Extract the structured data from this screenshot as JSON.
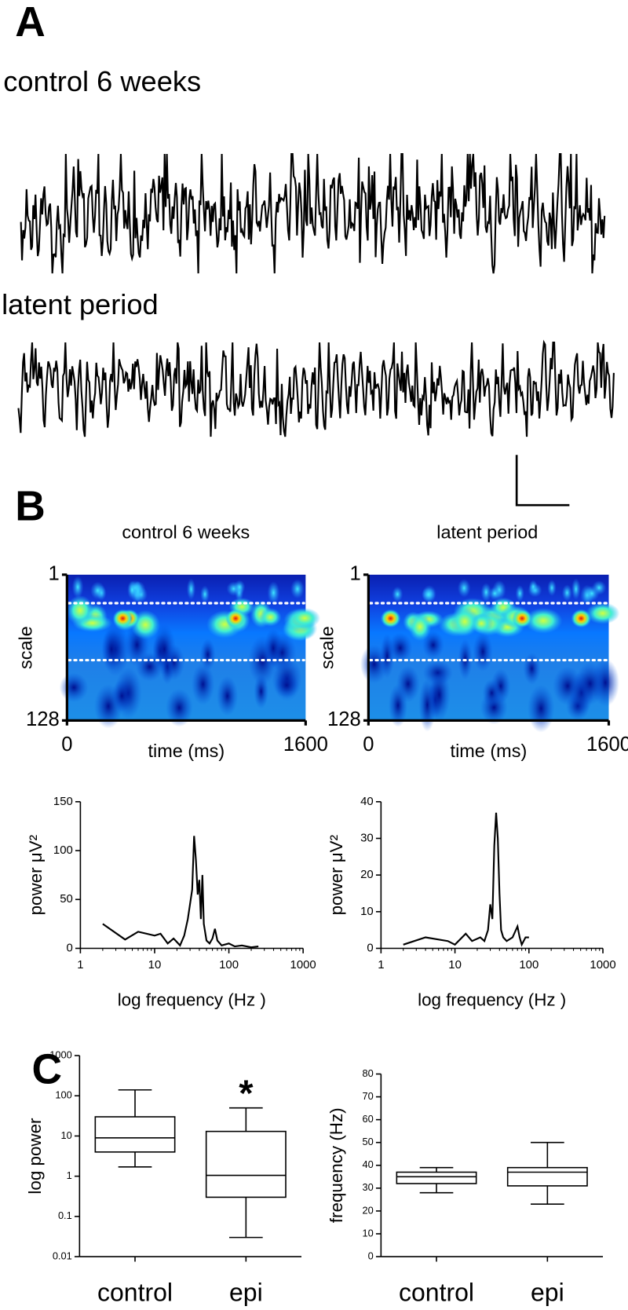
{
  "panel_labels": [
    "A",
    "B",
    "C"
  ],
  "traces": {
    "titles": [
      "control 6 weeks",
      "latent period"
    ]
  },
  "chart_data": [
    {
      "type": "heatmap",
      "title": "control 6 weeks",
      "xlabel": "time (ms)",
      "ylabel": "scale",
      "xlim": [
        0,
        1600
      ],
      "xticks": [
        0,
        1600
      ],
      "ylim": [
        1,
        128
      ],
      "yticks": [
        1,
        128
      ],
      "y_inverted": true
    },
    {
      "type": "heatmap",
      "title": "latent period",
      "xlabel": "time (ms)",
      "ylabel": "scale",
      "xlim": [
        0,
        1600
      ],
      "xticks": [
        0,
        1600
      ],
      "ylim": [
        1,
        128
      ],
      "yticks": [
        1,
        128
      ],
      "y_inverted": true
    },
    {
      "type": "line",
      "xlabel": "log frequency (Hz )",
      "ylabel": "power μV²",
      "xscale": "log",
      "color": "#000000",
      "x": [
        2,
        4,
        6,
        10,
        12,
        15,
        18,
        22,
        25,
        28,
        32,
        34,
        36,
        38,
        40,
        42,
        44,
        46,
        50,
        55,
        60,
        65,
        70,
        80,
        100,
        120,
        150,
        200,
        250
      ],
      "values": [
        25,
        9,
        17,
        13,
        15,
        5,
        10,
        3,
        13,
        30,
        60,
        115,
        90,
        55,
        70,
        30,
        75,
        25,
        8,
        5,
        10,
        20,
        8,
        3,
        5,
        2,
        3,
        1,
        2
      ],
      "xlim": [
        1,
        1000
      ],
      "xticks": [
        1,
        10,
        100,
        1000
      ],
      "ylim": [
        0,
        150
      ],
      "yticks": [
        0,
        50,
        100,
        150
      ]
    },
    {
      "type": "line",
      "xlabel": "log frequency (Hz )",
      "ylabel": "power μV²",
      "xscale": "log",
      "color": "#000000",
      "x": [
        2,
        4,
        8,
        10,
        14,
        17,
        22,
        25,
        28,
        30,
        32,
        34,
        36,
        38,
        40,
        42,
        45,
        50,
        60,
        70,
        75,
        80,
        90,
        100
      ],
      "values": [
        1,
        3,
        2,
        1,
        4,
        2,
        3,
        2,
        5,
        12,
        8,
        28,
        37,
        30,
        15,
        5,
        3,
        2,
        3,
        6,
        3,
        1,
        3,
        3
      ],
      "xlim": [
        1,
        1000
      ],
      "xticks": [
        1,
        10,
        100,
        1000
      ],
      "ylim": [
        0,
        40
      ],
      "yticks": [
        0,
        10,
        20,
        30,
        40
      ]
    },
    {
      "type": "box",
      "ylabel": "log power",
      "yscale": "log",
      "categories": [
        "control",
        "epi"
      ],
      "boxes": [
        {
          "min": 1.7,
          "q1": 4,
          "median": 9,
          "q3": 30,
          "max": 140
        },
        {
          "min": 0.03,
          "q1": 0.3,
          "median": 1.05,
          "q3": 13,
          "max": 50,
          "label": "*"
        }
      ],
      "ylim": [
        0.01,
        1000
      ],
      "yticks": [
        0.01,
        0.1,
        1,
        10,
        100,
        1000
      ]
    },
    {
      "type": "box",
      "ylabel": "frequency (Hz)",
      "categories": [
        "control",
        "epi"
      ],
      "boxes": [
        {
          "min": 28,
          "q1": 32,
          "median": 35,
          "q3": 37,
          "max": 39
        },
        {
          "min": 23,
          "q1": 31,
          "median": 37,
          "q3": 39,
          "max": 50
        }
      ],
      "ylim": [
        0,
        80
      ],
      "yticks": [
        0,
        10,
        20,
        30,
        40,
        50,
        60,
        70,
        80
      ]
    }
  ]
}
